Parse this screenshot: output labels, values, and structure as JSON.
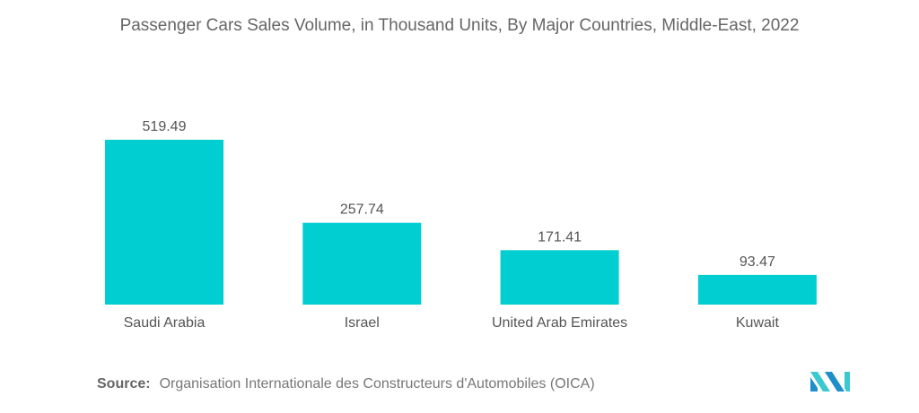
{
  "chart_data": {
    "type": "bar",
    "title": "Passenger Cars Sales Volume, in Thousand Units, By Major Countries, Middle-East, 2022",
    "categories": [
      "Saudi Arabia",
      "Israel",
      "United Arab Emirates",
      "Kuwait"
    ],
    "values": [
      519.49,
      257.74,
      171.41,
      93.47
    ],
    "value_labels": [
      "519.49",
      "257.74",
      "171.41",
      "93.47"
    ],
    "xlabel": "",
    "ylabel": "",
    "ylim": [
      0,
      520
    ],
    "grid": false,
    "bar_color": "#00CED1"
  },
  "source": {
    "label": "Source:",
    "text": "Organisation Internationale des Constructeurs d'Automobiles (OICA)"
  },
  "logo": {
    "colors": [
      "#1E8FC9",
      "#3CC8D0"
    ]
  }
}
